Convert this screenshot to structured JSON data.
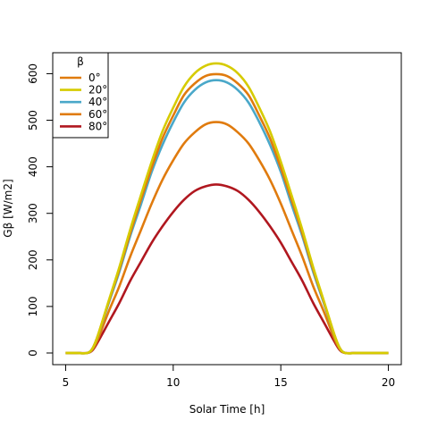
{
  "chart_data": {
    "type": "line",
    "xlabel": "Solar Time [h]",
    "ylabel": "Gβ [W/m2]",
    "xlim": [
      4.4,
      20.6
    ],
    "ylim": [
      -25,
      645
    ],
    "x_ticks": [
      5,
      10,
      15,
      20
    ],
    "y_ticks": [
      0,
      100,
      200,
      300,
      400,
      500,
      600
    ],
    "legend": {
      "title": "β",
      "placement": "top-left"
    },
    "x": [
      5,
      5.5,
      6,
      6.25,
      6.5,
      7,
      7.5,
      8,
      8.5,
      9,
      9.5,
      10,
      10.5,
      11,
      11.5,
      12,
      12.5,
      13,
      13.5,
      14,
      14.5,
      15,
      15.5,
      16,
      16.5,
      17,
      17.5,
      17.75,
      18,
      18.5,
      19,
      19.5,
      20
    ],
    "series": [
      {
        "name": "0°",
        "color": "#E07B0E",
        "values": [
          0,
          0,
          0,
          10,
          38,
          110,
          180,
          257,
          329,
          398,
          461,
          510,
          554,
          579,
          595,
          599,
          595,
          579,
          554,
          510,
          461,
          398,
          329,
          257,
          180,
          110,
          38,
          10,
          0,
          0,
          0,
          0,
          0
        ]
      },
      {
        "name": "20°",
        "color": "#D6CB00",
        "values": [
          0,
          0,
          0,
          10,
          38,
          112,
          185,
          265,
          339,
          411,
          476,
          527,
          572,
          601,
          617,
          622,
          617,
          601,
          572,
          527,
          476,
          411,
          339,
          265,
          185,
          112,
          38,
          10,
          0,
          0,
          0,
          0,
          0
        ]
      },
      {
        "name": "40°",
        "color": "#4AA8C9",
        "values": [
          0,
          0,
          0,
          10,
          37,
          107,
          175,
          251,
          319,
          389,
          447,
          496,
          538,
          565,
          581,
          586,
          581,
          565,
          538,
          496,
          447,
          389,
          319,
          251,
          175,
          107,
          37,
          10,
          0,
          0,
          0,
          0,
          0
        ]
      },
      {
        "name": "60°",
        "color": "#E07B0E",
        "values": [
          0,
          0,
          0,
          8,
          30,
          89,
          144,
          207,
          264,
          321,
          372,
          414,
          450,
          474,
          491,
          496,
          491,
          474,
          450,
          414,
          372,
          321,
          264,
          207,
          144,
          89,
          30,
          8,
          0,
          0,
          0,
          0,
          0
        ]
      },
      {
        "name": "80°",
        "color": "#B0171F",
        "values": [
          0,
          0,
          0,
          6,
          24,
          66,
          108,
          155,
          196,
          237,
          272,
          303,
          329,
          348,
          358,
          362,
          358,
          348,
          329,
          303,
          272,
          237,
          196,
          155,
          108,
          66,
          24,
          6,
          0,
          0,
          0,
          0,
          0
        ]
      }
    ]
  }
}
